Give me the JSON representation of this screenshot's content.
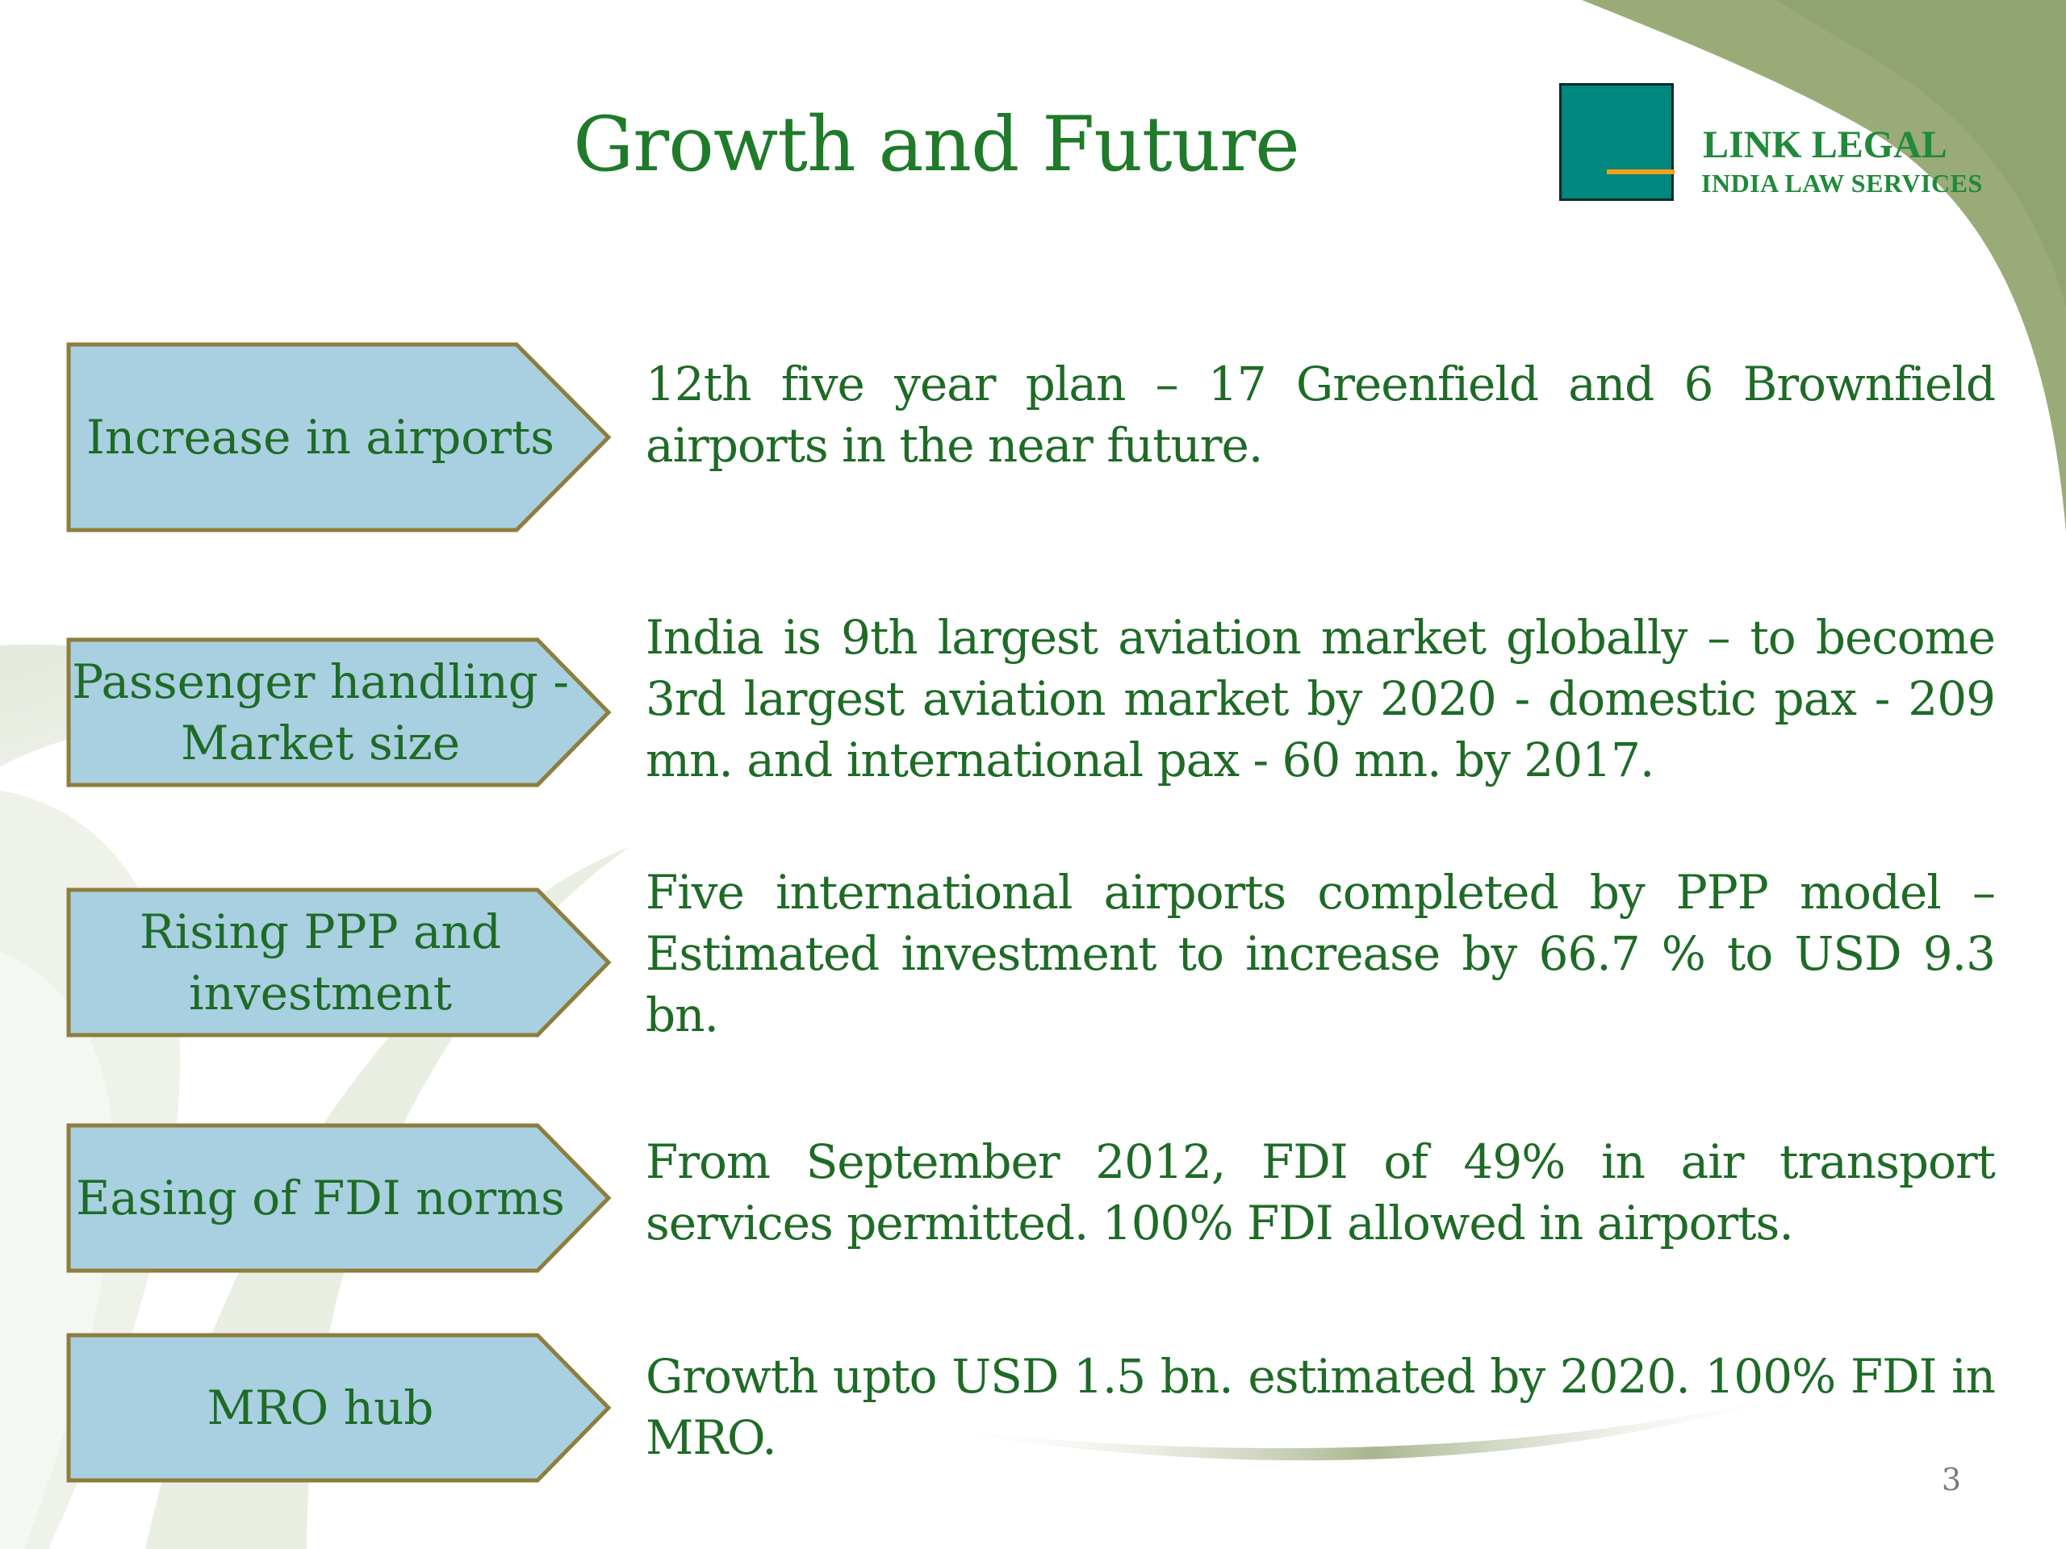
{
  "slide": {
    "title": "Growth and Future",
    "page_number": "3",
    "colors": {
      "title_text": "#1f7a2a",
      "body_text": "#1e6b26",
      "label_fill": "#a8d0e0",
      "label_border": "#8e7d3c",
      "logo_square": "#00877e",
      "logo_bar": "#f6a11a",
      "background_swoosh": "#9aab78"
    }
  },
  "logo": {
    "name": "LINK LEGAL",
    "tagline": "INDIA LAW  SERVICES"
  },
  "rows": [
    {
      "label": "Increase in airports",
      "description": "12th five year plan – 17 Greenfield  and 6 Brownfield airports in the near future."
    },
    {
      "label": "Passenger handling - Market size",
      "description": "India is 9th largest aviation market globally – to become 3rd largest aviation market by 2020 - domestic pax - 209 mn. and international pax - 60 mn. by 2017."
    },
    {
      "label": "Rising PPP and investment",
      "description": "Five international airports completed by PPP model – Estimated investment to increase by 66.7 % to USD 9.3 bn."
    },
    {
      "label": "Easing of FDI norms",
      "description": "From September 2012, FDI of 49% in air transport services permitted.  100% FDI allowed in airports."
    },
    {
      "label": "MRO hub",
      "description": "Growth upto USD 1.5 bn. estimated by 2020. 100% FDI in MRO."
    }
  ]
}
